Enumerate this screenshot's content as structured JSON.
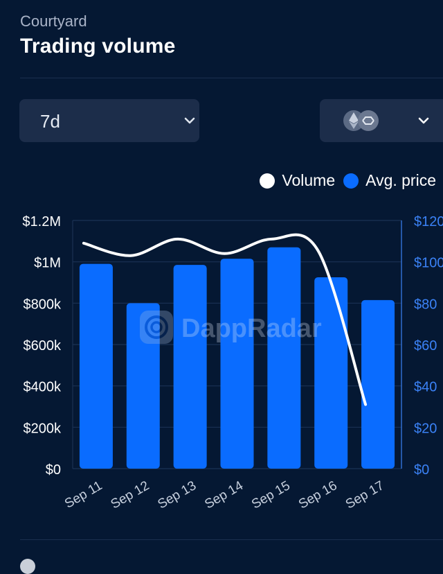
{
  "header": {
    "subtitle": "Courtyard",
    "title": "Trading volume"
  },
  "controls": {
    "period_value": "7d",
    "chain_selector_icons": [
      "ethereum-icon",
      "polygon-icon"
    ]
  },
  "legend": {
    "volume_label": "Volume",
    "avg_price_label": "Avg. price"
  },
  "watermark": "DappRadar",
  "colors": {
    "background": "#051833",
    "bar": "#0a6cff",
    "line": "#ffffff",
    "grid": "#1b3154",
    "right_axis": "#3b82f6",
    "dropdown": "#1c2d4a"
  },
  "chart_data": {
    "type": "bar",
    "categories": [
      "Sep 11",
      "Sep 12",
      "Sep 13",
      "Sep 14",
      "Sep 15",
      "Sep 16",
      "Sep 17"
    ],
    "series": [
      {
        "name": "Avg. price",
        "type": "bar",
        "axis": "right",
        "values": [
          99,
          80,
          98.5,
          101.5,
          107,
          92.5,
          81.5
        ]
      },
      {
        "name": "Volume",
        "type": "line",
        "axis": "left",
        "values": [
          1090000,
          1030000,
          1110000,
          1040000,
          1110000,
          1050000,
          310000
        ]
      }
    ],
    "y_left": {
      "ticks": [
        "$0",
        "$200k",
        "$400k",
        "$600k",
        "$800k",
        "$1M",
        "$1.2M"
      ],
      "ylim": [
        0,
        1200000
      ]
    },
    "y_right": {
      "ticks": [
        "$0",
        "$20",
        "$40",
        "$60",
        "$80",
        "$100",
        "$120"
      ],
      "ylim": [
        0,
        120
      ]
    },
    "grid": true,
    "legend_position": "top-right"
  }
}
